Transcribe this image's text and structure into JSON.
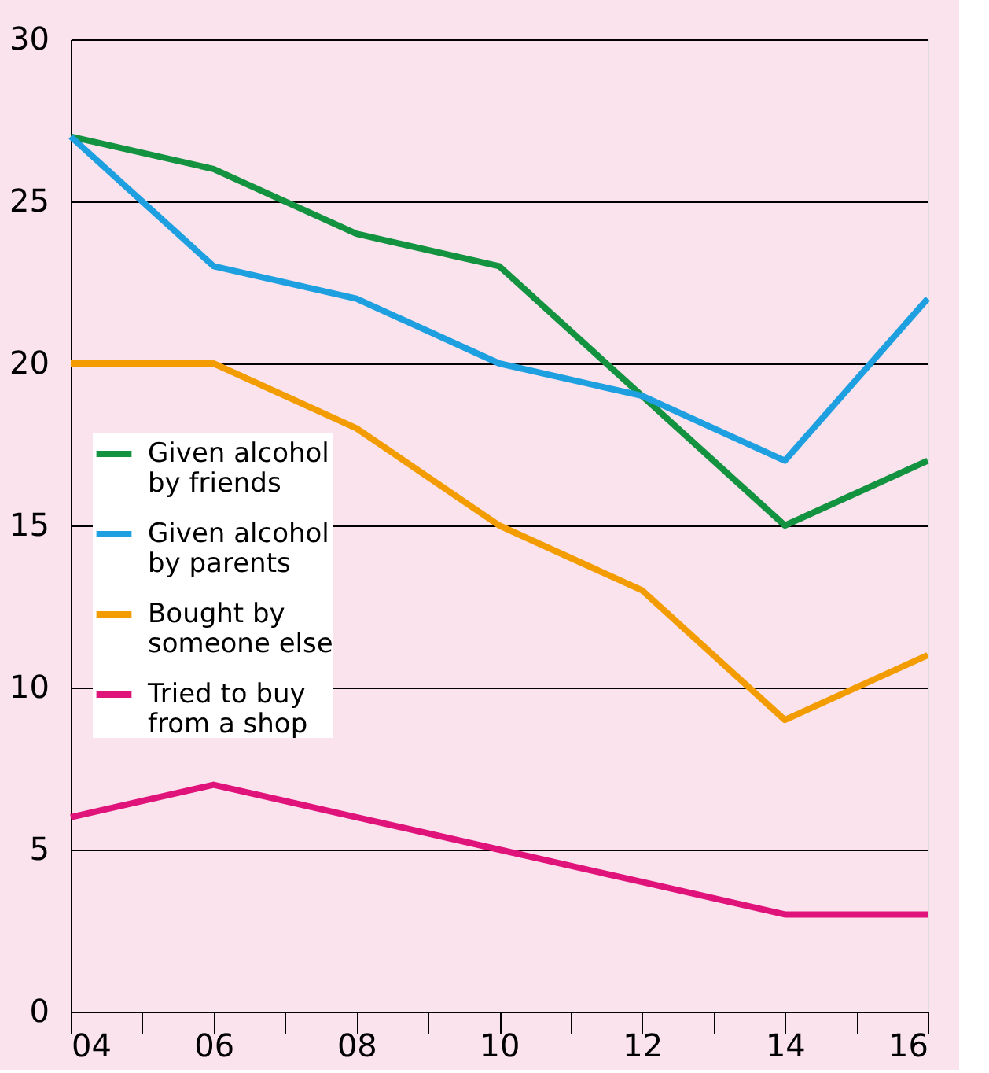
{
  "chart_data": {
    "type": "line",
    "x": [
      4,
      6,
      8,
      10,
      12,
      14,
      16
    ],
    "series": [
      {
        "name": "Given alcohol by friends",
        "color": "#13923f",
        "values": [
          27,
          26,
          24,
          23,
          19,
          15,
          17
        ]
      },
      {
        "name": "Given alcohol by parents",
        "color": "#1ea0e0",
        "values": [
          27,
          23,
          22,
          20,
          19,
          17,
          22
        ]
      },
      {
        "name": "Bought by someone else",
        "color": "#f39c00",
        "values": [
          20,
          20,
          18,
          15,
          13,
          9,
          11
        ]
      },
      {
        "name": "Tried to buy from a shop",
        "color": "#e0137b",
        "values": [
          6,
          7,
          6,
          5,
          4,
          3,
          3
        ]
      }
    ],
    "xlim": [
      4,
      16
    ],
    "xticks": [
      {
        "value": 4,
        "label": "04"
      },
      {
        "value": 5,
        "label": null
      },
      {
        "value": 6,
        "label": "06"
      },
      {
        "value": 7,
        "label": null
      },
      {
        "value": 8,
        "label": "08"
      },
      {
        "value": 9,
        "label": null
      },
      {
        "value": 10,
        "label": "10"
      },
      {
        "value": 11,
        "label": null
      },
      {
        "value": 12,
        "label": "12"
      },
      {
        "value": 13,
        "label": null
      },
      {
        "value": 14,
        "label": "14"
      },
      {
        "value": 15,
        "label": null
      },
      {
        "value": 16,
        "label": "16"
      }
    ],
    "ylim": [
      0,
      30
    ],
    "yticks": [
      0,
      5,
      10,
      15,
      20,
      25,
      30
    ],
    "grid": "y",
    "legend": "left",
    "marker": "none",
    "line_style": "solid"
  }
}
